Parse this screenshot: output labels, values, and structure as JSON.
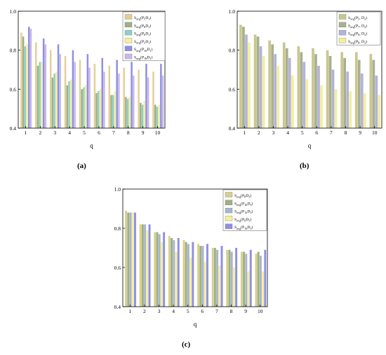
{
  "charts": [
    {
      "label": "(a)",
      "chart_data": {
        "type": "bar",
        "xlabel": "q",
        "ylabel": "",
        "ylim": [
          0.4,
          1.0
        ],
        "yticks": [
          "0.4",
          "0.6",
          "0.8",
          "1.0"
        ],
        "categories": [
          "1",
          "2",
          "3",
          "4",
          "5",
          "6",
          "7",
          "8",
          "9",
          "10"
        ],
        "legend_position": "top-right",
        "series": [
          {
            "name_base": "S",
            "name_sub": "avg",
            "name_rest": "(P",
            "name_sub2": "5",
            "name_rest2": "D",
            "name_sub3": "1",
            "name_end": ")",
            "color": "#e3cf96",
            "values": [
              0.89,
              0.84,
              0.8,
              0.77,
              0.75,
              0.73,
              0.72,
              0.71,
              0.7,
              0.69
            ]
          },
          {
            "name_base": "S",
            "name_sub": "avg",
            "name_rest": "(P",
            "name_sub2": "8",
            "name_rest2": "D",
            "name_sub3": "1",
            "name_end": ")",
            "color": "#9fb081",
            "values": [
              0.87,
              0.72,
              0.66,
              0.62,
              0.6,
              0.58,
              0.57,
              0.56,
              0.53,
              0.52
            ]
          },
          {
            "name_base": "S",
            "name_sub": "avg",
            "name_rest": "(P",
            "name_sub2": "6",
            "name_rest2": "D",
            "name_sub3": "1",
            "name_end": ")",
            "color": "#8fcfc9",
            "values": [
              0.82,
              0.74,
              0.68,
              0.64,
              0.61,
              0.59,
              0.57,
              0.55,
              0.52,
              0.51
            ]
          },
          {
            "name_base": "S",
            "name_sub": "avg",
            "name_rest": "(P",
            "name_sub2": "3",
            "name_rest2": "D",
            "name_sub3": "1",
            "name_end": ")",
            "color": "#f3ef9c",
            "values": [
              0.83,
              0.74,
              0.69,
              0.65,
              0.62,
              0.6,
              0.59,
              0.56,
              0.54,
              0.52
            ]
          },
          {
            "name_base": "S",
            "name_sub": "avg",
            "name_rest": "(P",
            "name_sub2": "10",
            "name_rest2": "D",
            "name_sub3": "1",
            "name_end": ")",
            "color": "#8f8fe3",
            "values": [
              0.92,
              0.86,
              0.83,
              0.8,
              0.78,
              0.76,
              0.75,
              0.74,
              0.73,
              0.73
            ]
          },
          {
            "name_base": "S",
            "name_sub": "avg",
            "name_rest": "(P",
            "name_sub2": "18",
            "name_rest2": "D",
            "name_sub3": "1",
            "name_end": ")",
            "color": "#c9b8ea",
            "values": [
              0.91,
              0.83,
              0.78,
              0.74,
              0.71,
              0.69,
              0.68,
              0.67,
              0.66,
              0.67
            ]
          }
        ]
      }
    },
    {
      "label": "(b)",
      "chart_data": {
        "type": "bar",
        "xlabel": "q",
        "ylabel": "",
        "ylim": [
          0.4,
          1.0
        ],
        "yticks": [
          "0.4",
          "0.6",
          "0.8",
          "1.0"
        ],
        "categories": [
          "1",
          "2",
          "3",
          "4",
          "5",
          "6",
          "7",
          "8",
          "9",
          "10"
        ],
        "legend_position": "top-right",
        "series": [
          {
            "name_base": "S",
            "name_sub": "avg",
            "name_rest": "(P",
            "name_sub2": "5",
            "name_rest2": ", D",
            "name_sub3": "2",
            "name_end": ")",
            "color": "#c9c78f",
            "values": [
              0.93,
              0.88,
              0.85,
              0.84,
              0.82,
              0.81,
              0.8,
              0.79,
              0.79,
              0.78
            ]
          },
          {
            "name_base": "S",
            "name_sub": "avg",
            "name_rest": "(P",
            "name_sub2": "7",
            "name_rest2": ", D",
            "name_sub3": "2",
            "name_end": ")",
            "color": "#a9b08f",
            "values": [
              0.92,
              0.87,
              0.83,
              0.81,
              0.79,
              0.78,
              0.77,
              0.76,
              0.75,
              0.75
            ]
          },
          {
            "name_base": "S",
            "name_sub": "avg",
            "name_rest": "(P",
            "name_sub2": "9",
            "name_rest2": ", D",
            "name_sub3": "2",
            "name_end": ")",
            "color": "#b3b3d9",
            "values": [
              0.88,
              0.82,
              0.78,
              0.76,
              0.74,
              0.72,
              0.7,
              0.69,
              0.68,
              0.67
            ]
          },
          {
            "name_base": "S",
            "name_sub": "avg",
            "name_rest": "(P",
            "name_sub2": "8",
            "name_rest2": ", D",
            "name_sub3": "2",
            "name_end": ")",
            "color": "#f3ef9c",
            "values": [
              0.84,
              0.77,
              0.72,
              0.67,
              0.65,
              0.62,
              0.6,
              0.59,
              0.58,
              0.57
            ]
          }
        ]
      }
    },
    {
      "label": "(c)",
      "chart_data": {
        "type": "bar",
        "xlabel": "q",
        "ylabel": "",
        "ylim": [
          0.4,
          1.0
        ],
        "yticks": [
          "0.4",
          "0.6",
          "0.8",
          "1.0"
        ],
        "categories": [
          "1",
          "2",
          "3",
          "4",
          "5",
          "6",
          "7",
          "8",
          "9",
          "10"
        ],
        "legend_position": "top-right",
        "series": [
          {
            "name_base": "S",
            "name_sub": "avg",
            "name_rest": "(P",
            "name_sub2": "8",
            "name_rest2": "D",
            "name_sub3": "3",
            "name_end": ")",
            "color": "#d6cf8f",
            "values": [
              0.89,
              0.82,
              0.78,
              0.76,
              0.74,
              0.72,
              0.7,
              0.69,
              0.68,
              0.67
            ]
          },
          {
            "name_base": "S",
            "name_sub": "avg",
            "name_rest": "(P",
            "name_sub2": "10",
            "name_rest2": "D",
            "name_sub3": "3",
            "name_end": ")",
            "color": "#9fb081",
            "values": [
              0.88,
              0.82,
              0.78,
              0.75,
              0.73,
              0.71,
              0.7,
              0.69,
              0.68,
              0.68
            ]
          },
          {
            "name_base": "S",
            "name_sub": "avg",
            "name_rest": "(P",
            "name_sub2": "12",
            "name_rest2": "D",
            "name_sub3": "3",
            "name_end": ")",
            "color": "#a9b6cf",
            "values": [
              0.88,
              0.82,
              0.77,
              0.74,
              0.72,
              0.71,
              0.69,
              0.68,
              0.67,
              0.66
            ]
          },
          {
            "name_base": "S",
            "name_sub": "avg",
            "name_rest": "(P",
            "name_sub2": "6",
            "name_rest2": "D",
            "name_sub3": "3",
            "name_end": ")",
            "color": "#f3ef9c",
            "values": [
              0.88,
              0.79,
              0.73,
              0.68,
              0.65,
              0.63,
              0.61,
              0.6,
              0.58,
              0.58
            ]
          },
          {
            "name_base": "S",
            "name_sub": "avg",
            "name_rest": "(P",
            "name_sub2": "19",
            "name_rest2": "D",
            "name_sub3": "3",
            "name_end": ")",
            "color": "#8f8fe3",
            "values": [
              0.88,
              0.82,
              0.78,
              0.75,
              0.73,
              0.72,
              0.71,
              0.7,
              0.69,
              0.69
            ]
          }
        ]
      }
    }
  ]
}
